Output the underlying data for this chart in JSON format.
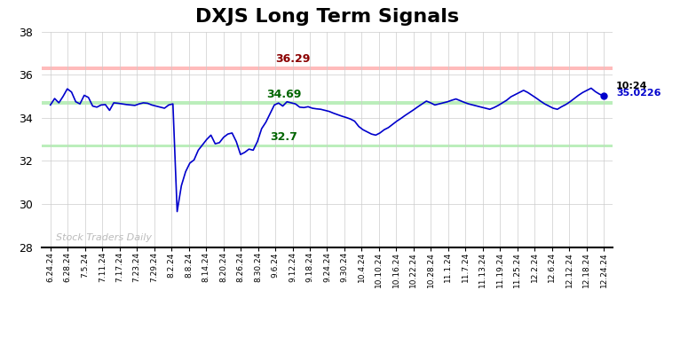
{
  "title": "DXJS Long Term Signals",
  "title_fontsize": 16,
  "title_fontweight": "bold",
  "ylim": [
    28,
    38
  ],
  "yticks": [
    28,
    30,
    32,
    34,
    36,
    38
  ],
  "resistance_line": 36.29,
  "support_upper": 34.69,
  "support_lower": 32.7,
  "last_label_time": "10:24",
  "last_label_value": "35.0226",
  "resistance_color": "#ffbbbb",
  "support_color": "#bbeebb",
  "line_color": "#0000cc",
  "watermark_text": "Stock Traders Daily",
  "watermark_color": "#bbbbbb",
  "annotation_resistance": "36.29",
  "annotation_support_upper": "34.69",
  "annotation_support_lower": "32.7",
  "xtick_labels": [
    "6.24.24",
    "6.28.24",
    "7.5.24",
    "7.11.24",
    "7.17.24",
    "7.23.24",
    "7.29.24",
    "8.2.24",
    "8.8.24",
    "8.14.24",
    "8.20.24",
    "8.26.24",
    "8.30.24",
    "9.6.24",
    "9.12.24",
    "9.18.24",
    "9.24.24",
    "9.30.24",
    "10.4.24",
    "10.10.24",
    "10.16.24",
    "10.22.24",
    "10.28.24",
    "11.1.24",
    "11.7.24",
    "11.13.24",
    "11.19.24",
    "11.25.24",
    "12.2.24",
    "12.6.24",
    "12.12.24",
    "12.18.24",
    "12.24.24"
  ],
  "prices": [
    34.6,
    34.9,
    34.7,
    35.0,
    35.35,
    35.2,
    34.75,
    34.65,
    35.05,
    34.95,
    34.55,
    34.5,
    34.6,
    34.62,
    34.35,
    34.7,
    34.68,
    34.65,
    34.62,
    34.6,
    34.58,
    34.65,
    34.7,
    34.68,
    34.6,
    34.55,
    34.5,
    34.45,
    34.6,
    34.65,
    29.65,
    30.85,
    31.5,
    31.9,
    32.05,
    32.5,
    32.75,
    33.0,
    33.2,
    32.8,
    32.85,
    33.1,
    33.25,
    33.3,
    32.9,
    32.3,
    32.4,
    32.55,
    32.5,
    32.9,
    33.5,
    33.8,
    34.2,
    34.6,
    34.69,
    34.55,
    34.75,
    34.7,
    34.65,
    34.5,
    34.48,
    34.52,
    34.45,
    34.42,
    34.4,
    34.35,
    34.3,
    34.22,
    34.15,
    34.08,
    34.02,
    33.95,
    33.85,
    33.6,
    33.45,
    33.35,
    33.25,
    33.2,
    33.3,
    33.45,
    33.55,
    33.7,
    33.85,
    33.98,
    34.12,
    34.25,
    34.38,
    34.52,
    34.65,
    34.78,
    34.7,
    34.6,
    34.65,
    34.7,
    34.75,
    34.82,
    34.88,
    34.8,
    34.72,
    34.65,
    34.6,
    34.55,
    34.5,
    34.45,
    34.4,
    34.48,
    34.58,
    34.7,
    34.82,
    34.98,
    35.08,
    35.18,
    35.28,
    35.18,
    35.05,
    34.92,
    34.78,
    34.65,
    34.55,
    34.45,
    34.4,
    34.52,
    34.62,
    34.75,
    34.9,
    35.05,
    35.18,
    35.28,
    35.38,
    35.22,
    35.1,
    35.0226
  ]
}
